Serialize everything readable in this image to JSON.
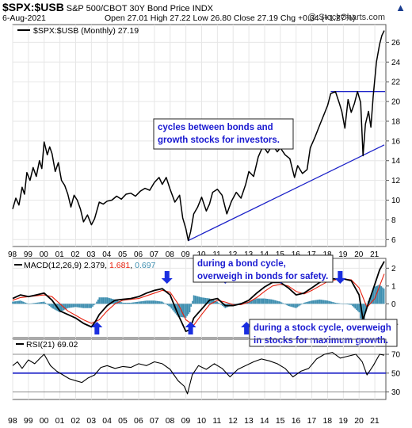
{
  "header": {
    "symbol": "$SPX:$USB",
    "description": "S&P 500/CBOT 30Y Bond Price INDX",
    "date": "6-Aug-2021",
    "ohlc_text": "Open 27.01  High 27.22  Low 26.80  Close 27.19  Chg +0.34 (+1.27%)",
    "chg_arrow": "▲",
    "watermark": "@ StockCharts.com"
  },
  "colors": {
    "price": "#000000",
    "macd": "#000000",
    "signal": "#e8200e",
    "hist": "#3f8fb0",
    "trendline": "#1c22c8",
    "arrow": "#1a2ee0",
    "annotation_text": "#1a1ad0",
    "rsi_line": "#000000",
    "rsi_level": "#1c22c8",
    "grid": "#e6e6e6"
  },
  "chart_data": [
    {
      "type": "line",
      "panel": "price",
      "legend": "$SPX:$USB (Monthly) 27.19",
      "x_ticks": [
        "98",
        "99",
        "00",
        "01",
        "02",
        "03",
        "04",
        "05",
        "06",
        "07",
        "08",
        "09",
        "10",
        "11",
        "12",
        "13",
        "14",
        "15",
        "16",
        "17",
        "18",
        "19",
        "20",
        "21"
      ],
      "y_ticks": [
        6,
        8,
        10,
        12,
        14,
        16,
        18,
        20,
        22,
        24,
        26
      ],
      "ylim": [
        5.3,
        27.8
      ],
      "xlim": [
        1998.0,
        2021.7
      ],
      "series": [
        {
          "x": [
            1998.0,
            1998.2,
            1998.4,
            1998.6,
            1998.75,
            1998.9,
            1999.1,
            1999.3,
            1999.5,
            1999.7,
            1999.85,
            2000.0,
            2000.2,
            2000.35,
            2000.5,
            2000.7,
            2000.9,
            2001.1,
            2001.3,
            2001.5,
            2001.7,
            2001.9,
            2002.1,
            2002.3,
            2002.5,
            2002.75,
            2003.0,
            2003.2,
            2003.5,
            2003.75,
            2004.0,
            2004.3,
            2004.6,
            2004.9,
            2005.2,
            2005.5,
            2005.8,
            2006.1,
            2006.4,
            2006.7,
            2007.0,
            2007.3,
            2007.5,
            2007.75,
            2008.0,
            2008.3,
            2008.6,
            2008.8,
            2009.0,
            2009.15,
            2009.3,
            2009.5,
            2009.75,
            2010.0,
            2010.3,
            2010.5,
            2010.7,
            2011.0,
            2011.3,
            2011.6,
            2011.9,
            2012.2,
            2012.5,
            2012.8,
            2013.0,
            2013.3,
            2013.6,
            2013.9,
            2014.2,
            2014.5,
            2014.8,
            2015.0,
            2015.3,
            2015.6,
            2015.9,
            2016.1,
            2016.4,
            2016.7,
            2016.9,
            2017.2,
            2017.5,
            2017.8,
            2018.0,
            2018.2,
            2018.5,
            2018.75,
            2018.9,
            2019.1,
            2019.3,
            2019.5,
            2019.7,
            2019.9,
            2020.1,
            2020.25,
            2020.4,
            2020.6,
            2020.75,
            2020.9,
            2021.1,
            2021.3,
            2021.45,
            2021.6
          ],
          "y": [
            9.1,
            10.2,
            9.5,
            11.3,
            10.6,
            12.8,
            12.0,
            13.3,
            12.4,
            14.0,
            13.2,
            15.9,
            14.6,
            15.4,
            14.7,
            12.9,
            13.8,
            12.0,
            11.5,
            10.6,
            9.3,
            10.5,
            10.0,
            9.1,
            7.8,
            8.5,
            7.5,
            8.1,
            9.8,
            9.6,
            9.9,
            10.0,
            10.4,
            10.1,
            10.6,
            10.7,
            10.4,
            10.9,
            11.2,
            11.0,
            11.8,
            12.3,
            11.6,
            12.3,
            11.1,
            9.8,
            10.5,
            8.2,
            7.1,
            5.9,
            6.8,
            8.6,
            9.3,
            10.3,
            8.9,
            9.6,
            10.8,
            11.1,
            10.5,
            8.6,
            9.9,
            10.8,
            10.2,
            11.6,
            12.9,
            12.4,
            14.4,
            15.5,
            14.8,
            15.6,
            14.9,
            15.3,
            14.6,
            14.2,
            12.3,
            13.5,
            12.7,
            13.1,
            15.3,
            16.4,
            17.6,
            18.8,
            19.6,
            20.8,
            21.0,
            19.8,
            19.0,
            17.3,
            20.2,
            18.9,
            19.8,
            21.0,
            19.9,
            14.5,
            17.7,
            19.0,
            17.4,
            20.6,
            24.0,
            25.8,
            26.7,
            27.19
          ]
        }
      ],
      "annotations": [
        {
          "text": "cycles between bonds and\ngrowth stocks for investors."
        }
      ]
    },
    {
      "type": "line",
      "panel": "macd",
      "legend_label": "MACD(12,26,9)",
      "legend_values": [
        "2.379",
        "1.681",
        "0.697"
      ],
      "y_ticks": [
        -1,
        0,
        1,
        2
      ],
      "ylim": [
        -1.9,
        2.55
      ],
      "series": [
        {
          "name": "MACD",
          "x": [
            1998.0,
            1998.5,
            1999.0,
            1999.5,
            2000.0,
            2000.5,
            2001.0,
            2001.5,
            2002.0,
            2002.5,
            2003.0,
            2003.25,
            2003.5,
            2004.0,
            2004.5,
            2005.0,
            2005.5,
            2006.0,
            2006.5,
            2007.0,
            2007.5,
            2008.0,
            2008.5,
            2009.0,
            2009.25,
            2009.5,
            2010.0,
            2010.5,
            2011.0,
            2011.5,
            2012.0,
            2012.5,
            2013.0,
            2013.5,
            2014.0,
            2014.5,
            2015.0,
            2015.5,
            2016.0,
            2016.5,
            2017.0,
            2017.5,
            2018.0,
            2018.5,
            2019.0,
            2019.5,
            2020.0,
            2020.25,
            2020.5,
            2021.0,
            2021.3,
            2021.6
          ],
          "y": [
            0.3,
            0.5,
            0.4,
            0.5,
            0.6,
            0.2,
            -0.4,
            -0.6,
            -0.8,
            -1.1,
            -1.3,
            -1.0,
            -0.6,
            -0.1,
            0.2,
            0.25,
            0.3,
            0.4,
            0.6,
            0.75,
            0.85,
            0.5,
            -0.6,
            -1.55,
            -1.45,
            -0.8,
            -0.3,
            0.2,
            0.3,
            -0.1,
            -0.1,
            0.0,
            0.2,
            0.6,
            0.95,
            1.2,
            1.2,
            0.9,
            0.5,
            0.6,
            0.9,
            1.2,
            1.4,
            1.4,
            1.4,
            1.3,
            0.5,
            -0.9,
            -0.2,
            1.1,
            1.9,
            2.38
          ]
        },
        {
          "name": "Signal",
          "x": [
            1998.0,
            1998.5,
            1999.0,
            1999.5,
            2000.0,
            2000.5,
            2001.0,
            2001.5,
            2002.0,
            2002.5,
            2003.0,
            2003.5,
            2004.0,
            2004.5,
            2005.0,
            2005.5,
            2006.0,
            2006.5,
            2007.0,
            2007.5,
            2008.0,
            2008.5,
            2009.0,
            2009.5,
            2010.0,
            2010.5,
            2011.0,
            2011.5,
            2012.0,
            2012.5,
            2013.0,
            2013.5,
            2014.0,
            2014.5,
            2015.0,
            2015.5,
            2016.0,
            2016.5,
            2017.0,
            2017.5,
            2018.0,
            2018.5,
            2019.0,
            2019.5,
            2020.0,
            2020.5,
            2021.0,
            2021.3,
            2021.6
          ],
          "y": [
            0.2,
            0.35,
            0.4,
            0.45,
            0.5,
            0.4,
            0.0,
            -0.4,
            -0.65,
            -0.9,
            -1.1,
            -0.9,
            -0.4,
            0.0,
            0.2,
            0.25,
            0.3,
            0.45,
            0.6,
            0.75,
            0.65,
            0.0,
            -0.9,
            -1.2,
            -0.6,
            -0.05,
            0.2,
            0.1,
            -0.05,
            -0.05,
            0.1,
            0.35,
            0.7,
            1.0,
            1.1,
            1.0,
            0.7,
            0.55,
            0.75,
            1.0,
            1.25,
            1.35,
            1.4,
            1.35,
            0.9,
            -0.2,
            0.3,
            1.0,
            1.68
          ]
        }
      ]
    },
    {
      "type": "line",
      "panel": "rsi",
      "legend": "RSI(21) 69.02",
      "y_ticks": [
        30,
        50,
        70
      ],
      "ylim": [
        22,
        86
      ],
      "levels": [
        30,
        50,
        70
      ],
      "series": [
        {
          "name": "RSI",
          "x": [
            1998.0,
            1998.3,
            1998.6,
            1999.0,
            1999.4,
            1999.8,
            2000.0,
            2000.4,
            2000.8,
            2001.2,
            2001.6,
            2002.0,
            2002.4,
            2002.8,
            2003.2,
            2003.6,
            2004.0,
            2004.5,
            2005.0,
            2005.5,
            2006.0,
            2006.5,
            2007.0,
            2007.5,
            2008.0,
            2008.5,
            2008.9,
            2009.1,
            2009.4,
            2009.8,
            2010.3,
            2010.8,
            2011.3,
            2011.8,
            2012.3,
            2012.8,
            2013.3,
            2013.8,
            2014.3,
            2014.8,
            2015.3,
            2015.8,
            2016.3,
            2016.8,
            2017.3,
            2017.8,
            2018.3,
            2018.8,
            2019.3,
            2019.8,
            2020.2,
            2020.5,
            2020.9,
            2021.3,
            2021.6
          ],
          "y": [
            58,
            62,
            55,
            64,
            60,
            67,
            70,
            58,
            52,
            48,
            44,
            42,
            40,
            45,
            48,
            56,
            58,
            55,
            57,
            56,
            60,
            58,
            62,
            60,
            54,
            42,
            36,
            28,
            48,
            58,
            54,
            60,
            55,
            46,
            54,
            58,
            62,
            65,
            63,
            60,
            55,
            46,
            52,
            55,
            65,
            70,
            72,
            66,
            68,
            70,
            62,
            48,
            58,
            70,
            69.02
          ]
        }
      ]
    }
  ],
  "annotations": {
    "bond_cycle": "during a bond cycle,\noverweigh in bonds for safety.",
    "stock_cycle": "during a stock cycle, overweigh\nin stocks for maximum growth."
  },
  "arrows_up": [
    2003.35,
    2009.3,
    2012.85,
    2016.8,
    2020.25
  ],
  "arrows_down": [
    2007.8,
    2011.5,
    2015.05,
    2018.8
  ],
  "trendline": {
    "x": [
      2009.15,
      2021.6
    ],
    "y": [
      5.9,
      15.6
    ]
  },
  "resistance": {
    "x": [
      2018.2,
      2021.65
    ],
    "y": [
      21.0,
      21.0
    ]
  }
}
